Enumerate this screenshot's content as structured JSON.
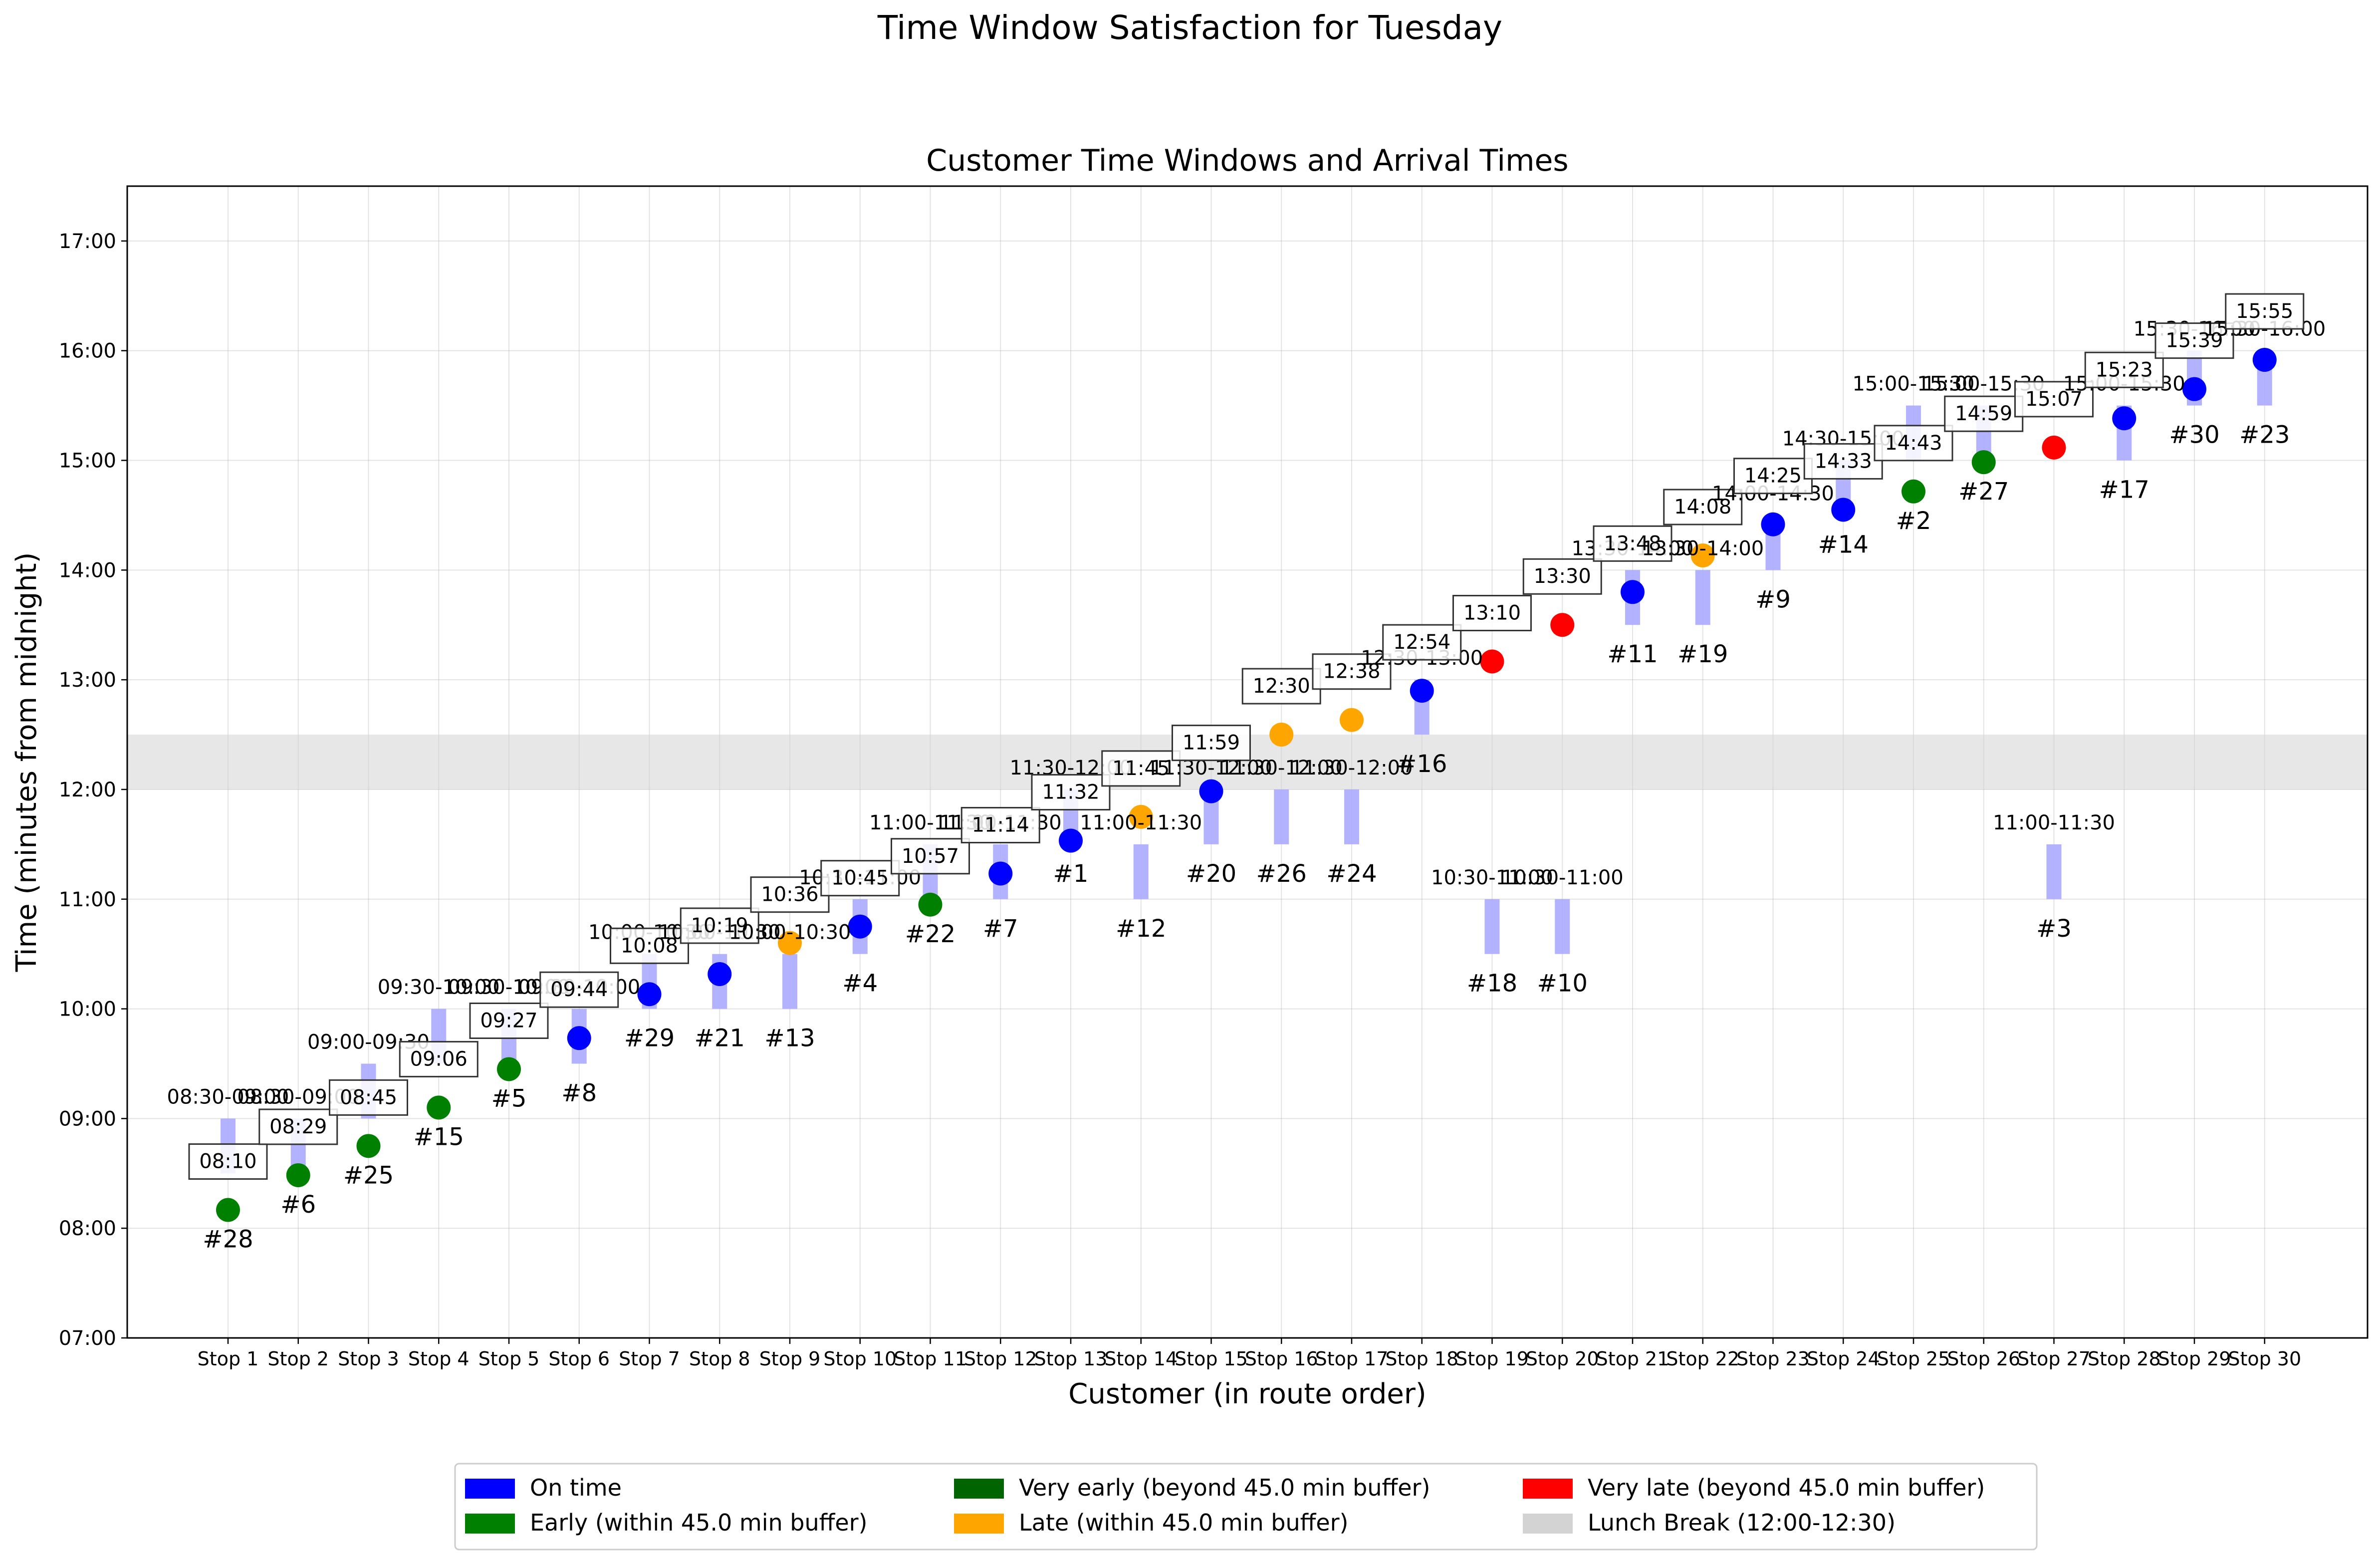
{
  "suptitle": "Time Window Satisfaction for Tuesday",
  "chart_data": {
    "type": "scatter",
    "title": "Customer Time Windows and Arrival Times",
    "xlabel": "Customer (in route order)",
    "ylabel": "Time (minutes from midnight)",
    "ylim": [
      420,
      1050
    ],
    "y_ticks": [
      {
        "value": 420,
        "label": "07:00"
      },
      {
        "value": 480,
        "label": "08:00"
      },
      {
        "value": 540,
        "label": "09:00"
      },
      {
        "value": 600,
        "label": "10:00"
      },
      {
        "value": 660,
        "label": "11:00"
      },
      {
        "value": 720,
        "label": "12:00"
      },
      {
        "value": 780,
        "label": "13:00"
      },
      {
        "value": 840,
        "label": "14:00"
      },
      {
        "value": 900,
        "label": "15:00"
      },
      {
        "value": 960,
        "label": "16:00"
      },
      {
        "value": 1020,
        "label": "17:00"
      }
    ],
    "grid": true,
    "lunch_break": {
      "start": 720,
      "end": 750
    },
    "status_colors": {
      "on_time": "#0000ff",
      "early": "#008000",
      "very_early": "#006400",
      "late": "#ffa500",
      "very_late": "#ff0000",
      "lunch": "#d3d3d3",
      "window": "#aaaaff"
    },
    "stops": [
      {
        "stop": "Stop 1",
        "customer": "#28",
        "window_label": "08:30-09:00",
        "window": [
          510,
          540
        ],
        "arrival": 490,
        "arrival_label": "08:10",
        "status": "early"
      },
      {
        "stop": "Stop 2",
        "customer": "#6",
        "window_label": "08:30-09:00",
        "window": [
          510,
          540
        ],
        "arrival": 509,
        "arrival_label": "08:29",
        "status": "early"
      },
      {
        "stop": "Stop 3",
        "customer": "#25",
        "window_label": "09:00-09:30",
        "window": [
          540,
          570
        ],
        "arrival": 525,
        "arrival_label": "08:45",
        "status": "early"
      },
      {
        "stop": "Stop 4",
        "customer": "#15",
        "window_label": "09:30-10:00",
        "window": [
          570,
          600
        ],
        "arrival": 546,
        "arrival_label": "09:06",
        "status": "early"
      },
      {
        "stop": "Stop 5",
        "customer": "#5",
        "window_label": "09:30-10:00",
        "window": [
          570,
          600
        ],
        "arrival": 567,
        "arrival_label": "09:27",
        "status": "early"
      },
      {
        "stop": "Stop 6",
        "customer": "#8",
        "window_label": "09:30-10:00",
        "window": [
          570,
          600
        ],
        "arrival": 584,
        "arrival_label": "09:44",
        "status": "on_time"
      },
      {
        "stop": "Stop 7",
        "customer": "#29",
        "window_label": "10:00-10:30",
        "window": [
          600,
          630
        ],
        "arrival": 608,
        "arrival_label": "10:08",
        "status": "on_time"
      },
      {
        "stop": "Stop 8",
        "customer": "#21",
        "window_label": "10:00-10:30",
        "window": [
          600,
          630
        ],
        "arrival": 619,
        "arrival_label": "10:19",
        "status": "on_time"
      },
      {
        "stop": "Stop 9",
        "customer": "#13",
        "window_label": "10:00-10:30",
        "window": [
          600,
          630
        ],
        "arrival": 636,
        "arrival_label": "10:36",
        "status": "late"
      },
      {
        "stop": "Stop 10",
        "customer": "#4",
        "window_label": "10:30-11:00",
        "window": [
          630,
          660
        ],
        "arrival": 645,
        "arrival_label": "10:45",
        "status": "on_time"
      },
      {
        "stop": "Stop 11",
        "customer": "#22",
        "window_label": "11:00-11:30",
        "window": [
          660,
          690
        ],
        "arrival": 657,
        "arrival_label": "10:57",
        "status": "early"
      },
      {
        "stop": "Stop 12",
        "customer": "#7",
        "window_label": "11:00-11:30",
        "window": [
          660,
          690
        ],
        "arrival": 674,
        "arrival_label": "11:14",
        "status": "on_time"
      },
      {
        "stop": "Stop 13",
        "customer": "#1",
        "window_label": "11:30-12:00",
        "window": [
          690,
          720
        ],
        "arrival": 692,
        "arrival_label": "11:32",
        "status": "on_time"
      },
      {
        "stop": "Stop 14",
        "customer": "#12",
        "window_label": "11:00-11:30",
        "window": [
          660,
          690
        ],
        "arrival": 705,
        "arrival_label": "11:45",
        "status": "late"
      },
      {
        "stop": "Stop 15",
        "customer": "#20",
        "window_label": "11:30-12:00",
        "window": [
          690,
          720
        ],
        "arrival": 719,
        "arrival_label": "11:59",
        "status": "on_time"
      },
      {
        "stop": "Stop 16",
        "customer": "#26",
        "window_label": "11:30-12:00",
        "window": [
          690,
          720
        ],
        "arrival": 750,
        "arrival_label": "12:30",
        "status": "late"
      },
      {
        "stop": "Stop 17",
        "customer": "#24",
        "window_label": "11:30-12:00",
        "window": [
          690,
          720
        ],
        "arrival": 758,
        "arrival_label": "12:38",
        "status": "late"
      },
      {
        "stop": "Stop 18",
        "customer": "#16",
        "window_label": "12:30-13:00",
        "window": [
          750,
          780
        ],
        "arrival": 774,
        "arrival_label": "12:54",
        "status": "on_time"
      },
      {
        "stop": "Stop 19",
        "customer": "#18",
        "window_label": "10:30-11:00",
        "window": [
          630,
          660
        ],
        "arrival": 790,
        "arrival_label": "13:10",
        "status": "very_late"
      },
      {
        "stop": "Stop 20",
        "customer": "#10",
        "window_label": "10:30-11:00",
        "window": [
          630,
          660
        ],
        "arrival": 810,
        "arrival_label": "13:30",
        "status": "very_late"
      },
      {
        "stop": "Stop 21",
        "customer": "#11",
        "window_label": "13:30-14:00",
        "window": [
          810,
          840
        ],
        "arrival": 828,
        "arrival_label": "13:48",
        "status": "on_time"
      },
      {
        "stop": "Stop 22",
        "customer": "#19",
        "window_label": "13:30-14:00",
        "window": [
          810,
          840
        ],
        "arrival": 848,
        "arrival_label": "14:08",
        "status": "late"
      },
      {
        "stop": "Stop 23",
        "customer": "#9",
        "window_label": "14:00-14:30",
        "window": [
          840,
          870
        ],
        "arrival": 865,
        "arrival_label": "14:25",
        "status": "on_time"
      },
      {
        "stop": "Stop 24",
        "customer": "#14",
        "window_label": "14:30-15:00",
        "window": [
          870,
          900
        ],
        "arrival": 873,
        "arrival_label": "14:33",
        "status": "on_time"
      },
      {
        "stop": "Stop 25",
        "customer": "#2",
        "window_label": "15:00-15:30",
        "window": [
          900,
          930
        ],
        "arrival": 883,
        "arrival_label": "14:43",
        "status": "early"
      },
      {
        "stop": "Stop 26",
        "customer": "#27",
        "window_label": "15:00-15:30",
        "window": [
          900,
          930
        ],
        "arrival": 899,
        "arrival_label": "14:59",
        "status": "early"
      },
      {
        "stop": "Stop 27",
        "customer": "#3",
        "window_label": "11:00-11:30",
        "window": [
          660,
          690
        ],
        "arrival": 907,
        "arrival_label": "15:07",
        "status": "very_late"
      },
      {
        "stop": "Stop 28",
        "customer": "#17",
        "window_label": "15:00-15:30",
        "window": [
          900,
          930
        ],
        "arrival": 923,
        "arrival_label": "15:23",
        "status": "on_time"
      },
      {
        "stop": "Stop 29",
        "customer": "#30",
        "window_label": "15:30-16:00",
        "window": [
          930,
          960
        ],
        "arrival": 939,
        "arrival_label": "15:39",
        "status": "on_time"
      },
      {
        "stop": "Stop 30",
        "customer": "#23",
        "window_label": "15:30-16:00",
        "window": [
          930,
          960
        ],
        "arrival": 955,
        "arrival_label": "15:55",
        "status": "on_time"
      }
    ],
    "legend": {
      "placement": "bottom-center",
      "items": [
        {
          "label": "On time",
          "color": "#0000ff"
        },
        {
          "label": "Early (within 45.0 min buffer)",
          "color": "#008000"
        },
        {
          "label": "Very early (beyond 45.0 min buffer)",
          "color": "#006400"
        },
        {
          "label": "Late (within 45.0 min buffer)",
          "color": "#ffa500"
        },
        {
          "label": "Very late (beyond 45.0 min buffer)",
          "color": "#ff0000"
        },
        {
          "label": "Lunch Break (12:00-12:30)",
          "color": "#d3d3d3"
        }
      ]
    }
  }
}
